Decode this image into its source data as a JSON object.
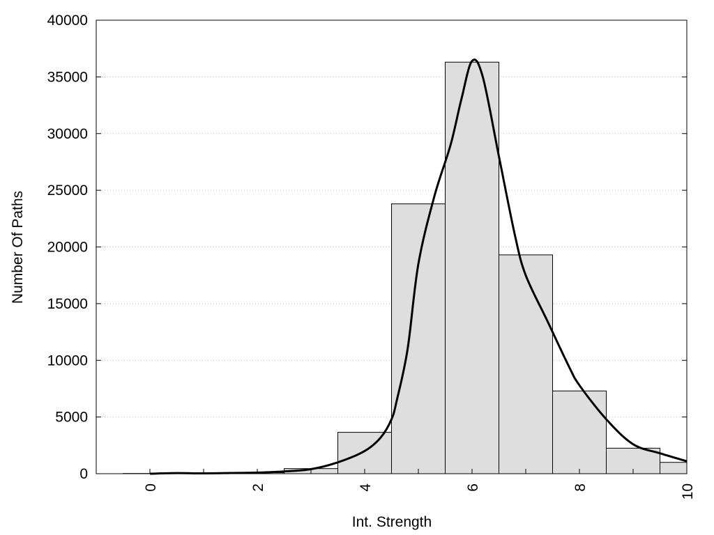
{
  "chart_data": {
    "type": "bar",
    "title": "",
    "xlabel": "Int. Strength",
    "ylabel": "Number Of Paths",
    "xlim": [
      -1,
      10
    ],
    "ylim": [
      0,
      40000
    ],
    "x_ticks": [
      0,
      2,
      4,
      6,
      8,
      10
    ],
    "y_ticks": [
      0,
      5000,
      10000,
      15000,
      20000,
      25000,
      30000,
      35000,
      40000
    ],
    "grid": "horizontal dotted",
    "colors": {
      "bar_fill": "#dedede",
      "bar_stroke": "#000000",
      "curve": "#000000",
      "grid": "#bbbbbb"
    },
    "series": [
      {
        "type": "histogram",
        "bins": [
          {
            "x": 0,
            "value": 20
          },
          {
            "x": 1,
            "value": 40
          },
          {
            "x": 2,
            "value": 90
          },
          {
            "x": 3,
            "value": 450
          },
          {
            "x": 4,
            "value": 3650
          },
          {
            "x": 5,
            "value": 23800
          },
          {
            "x": 6,
            "value": 36300
          },
          {
            "x": 7,
            "value": 19300
          },
          {
            "x": 8,
            "value": 7300
          },
          {
            "x": 9,
            "value": 2250
          },
          {
            "x": 10,
            "value": 1000
          }
        ]
      },
      {
        "type": "line",
        "points": [
          [
            0,
            0
          ],
          [
            0.5,
            50
          ],
          [
            1,
            30
          ],
          [
            1.5,
            60
          ],
          [
            2,
            100
          ],
          [
            2.5,
            200
          ],
          [
            3,
            400
          ],
          [
            3.5,
            1000
          ],
          [
            4,
            2000
          ],
          [
            4.3,
            3200
          ],
          [
            4.5,
            4800
          ],
          [
            4.6,
            6500
          ],
          [
            4.8,
            11000
          ],
          [
            5,
            18500
          ],
          [
            5.3,
            24500
          ],
          [
            5.6,
            29000
          ],
          [
            5.8,
            33000
          ],
          [
            6,
            36400
          ],
          [
            6.2,
            35000
          ],
          [
            6.5,
            28000
          ],
          [
            6.8,
            21000
          ],
          [
            7,
            17500
          ],
          [
            7.4,
            13500
          ],
          [
            7.8,
            9500
          ],
          [
            8,
            7800
          ],
          [
            8.5,
            4800
          ],
          [
            9,
            2600
          ],
          [
            9.5,
            1800
          ],
          [
            10,
            1100
          ]
        ]
      }
    ]
  }
}
